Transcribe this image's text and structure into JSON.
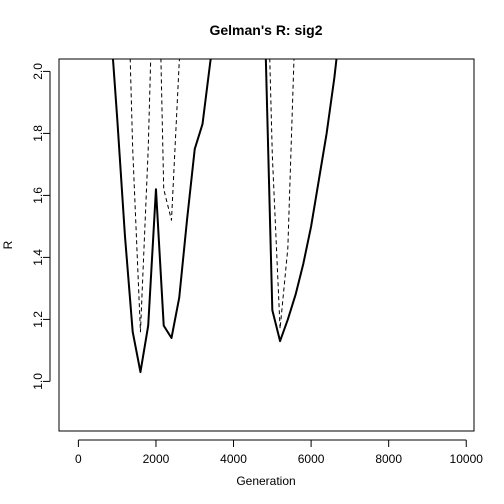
{
  "chart_data": {
    "type": "line",
    "title": "Gelman's R: sig2",
    "xlabel": "Generation",
    "ylabel": "R",
    "xlim": [
      -500,
      10200
    ],
    "ylim": [
      0.84,
      2.04
    ],
    "xticks": [
      0,
      2000,
      4000,
      6000,
      8000,
      10000
    ],
    "yticks": [
      1.0,
      1.2,
      1.4,
      1.6,
      1.8,
      2.0
    ],
    "xtick_labels": [
      "0",
      "2000",
      "4000",
      "6000",
      "8000",
      "10000"
    ],
    "ytick_labels": [
      "1.0",
      "1.2",
      "1.4",
      "1.6",
      "1.8",
      "2.0"
    ],
    "grid": false,
    "legend": "none",
    "series": [
      {
        "line_style": "solid",
        "color": "#000000",
        "segments": [
          [
            [
              800,
              2.2
            ],
            [
              1000,
              1.85
            ],
            [
              1200,
              1.47
            ],
            [
              1400,
              1.16
            ],
            [
              1600,
              1.03
            ],
            [
              1800,
              1.18
            ],
            [
              2000,
              1.62
            ],
            [
              2200,
              1.18
            ],
            [
              2400,
              1.14
            ],
            [
              2600,
              1.27
            ],
            [
              2800,
              1.52
            ],
            [
              3000,
              1.75
            ],
            [
              3200,
              1.83
            ],
            [
              3400,
              2.03
            ],
            [
              3600,
              2.2
            ]
          ],
          [
            [
              4800,
              2.2
            ],
            [
              5000,
              1.23
            ],
            [
              5200,
              1.13
            ],
            [
              5400,
              1.2
            ],
            [
              5600,
              1.28
            ],
            [
              5800,
              1.38
            ],
            [
              6000,
              1.5
            ],
            [
              6200,
              1.65
            ],
            [
              6400,
              1.8
            ],
            [
              6600,
              1.98
            ],
            [
              6800,
              2.2
            ]
          ]
        ]
      },
      {
        "line_style": "dashed",
        "color": "#000000",
        "segments": [
          [
            [
              1300,
              2.2
            ],
            [
              1400,
              1.75
            ],
            [
              1600,
              1.16
            ],
            [
              1800,
              1.75
            ],
            [
              1900,
              2.2
            ]
          ],
          [
            [
              2100,
              2.2
            ],
            [
              2200,
              1.62
            ],
            [
              2400,
              1.52
            ],
            [
              2600,
              2.03
            ],
            [
              2700,
              2.2
            ]
          ],
          [
            [
              4900,
              2.2
            ],
            [
              5000,
              1.73
            ],
            [
              5200,
              1.17
            ],
            [
              5400,
              1.43
            ],
            [
              5600,
              2.2
            ]
          ]
        ]
      }
    ]
  }
}
